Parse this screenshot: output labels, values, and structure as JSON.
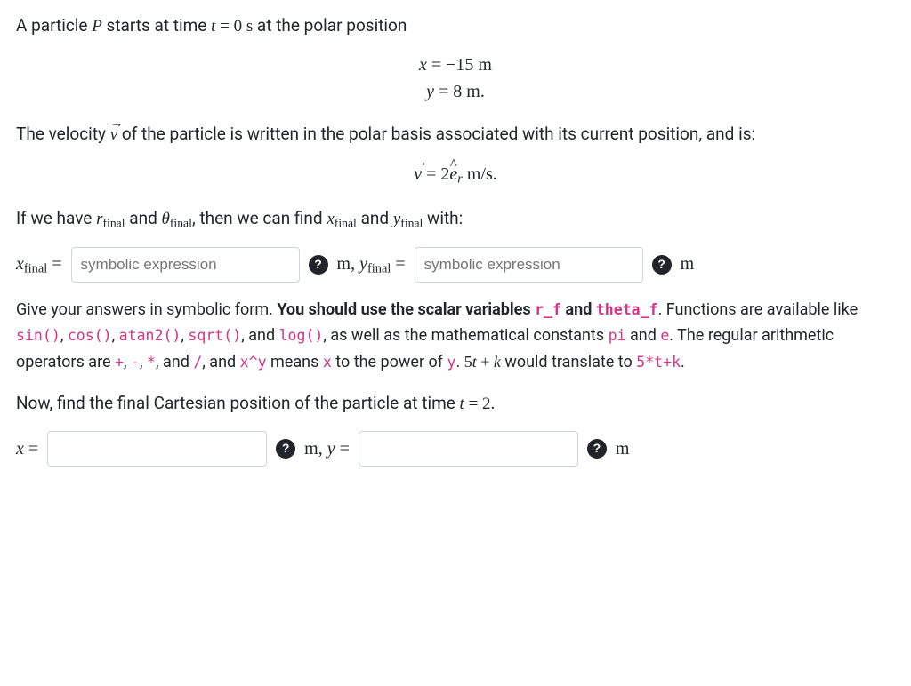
{
  "intro": {
    "prefix": "A particle ",
    "P": "P",
    "mid": " starts at time ",
    "t": "t",
    "eq": " = 0 s",
    "suffix": " at the polar position"
  },
  "eq1": {
    "line1_lhs": "x",
    "line1_rhs": " = −15 m",
    "line2_lhs": "y",
    "line2_rhs": " = 8 m."
  },
  "velText": {
    "a": "The velocity ",
    "v": "v",
    "b": " of the particle is written in the polar basis associated with its current position, and is:"
  },
  "eq2": {
    "v": "v",
    "mid": " = 2",
    "e": "e",
    "sub": "r",
    "tail": " m/s."
  },
  "cond": {
    "a": "If we have ",
    "r": "r",
    "rfinal": "final",
    "and1": " and ",
    "th": "θ",
    "thfinal": "final",
    "b": ", then we can find ",
    "x": "x",
    "xfinal": "final",
    "and2": " and ",
    "y": "y",
    "yfinal": "final",
    "c": " with:"
  },
  "row1": {
    "xlabel_var": "x",
    "xlabel_sub": "final",
    "eq": " = ",
    "placeholder": "symbolic expression",
    "unit_m": "m",
    "comma": ", ",
    "ylabel_var": "y",
    "ylabel_sub": "final"
  },
  "hint": {
    "t1": "Give your answers in symbolic form. ",
    "bold": "You should use the scalar variables ",
    "v1": "r_f",
    "bold2": " and ",
    "v2": "theta_f",
    "t2": ". Functions are available like ",
    "f1": "sin()",
    "c1": ", ",
    "f2": "cos()",
    "c2": ", ",
    "f3": "atan2()",
    "c3": ", ",
    "f4": "sqrt()",
    "c4": ", and ",
    "f5": "log()",
    "t3": ", as well as the mathematical constants ",
    "p1": "pi",
    "c5": " and ",
    "p2": "e",
    "t4": ". The regular arithmetic operators are ",
    "o1": "+",
    "c6": ", ",
    "o2": "-",
    "c7": ", ",
    "o3": "*",
    "c8": ", and ",
    "o4": "/",
    "c9": ", and ",
    "o5": "x^y",
    "t5": " means ",
    "o6": "x",
    "t6": " to the power of ",
    "o7": "y",
    "t7": ". ",
    "m1": "5",
    "m1b": "t",
    "m1c": " + ",
    "m1d": "k",
    "t8": " would translate to ",
    "ex": "5*t+k",
    "t9": "."
  },
  "now": {
    "a": "Now, find the final Cartesian position of the particle at time ",
    "t": "t",
    "b": " = 2."
  },
  "row2": {
    "x": "x",
    "eq": " = ",
    "unit_m": "m",
    "comma": ", ",
    "y": "y"
  },
  "helpGlyph": "?"
}
